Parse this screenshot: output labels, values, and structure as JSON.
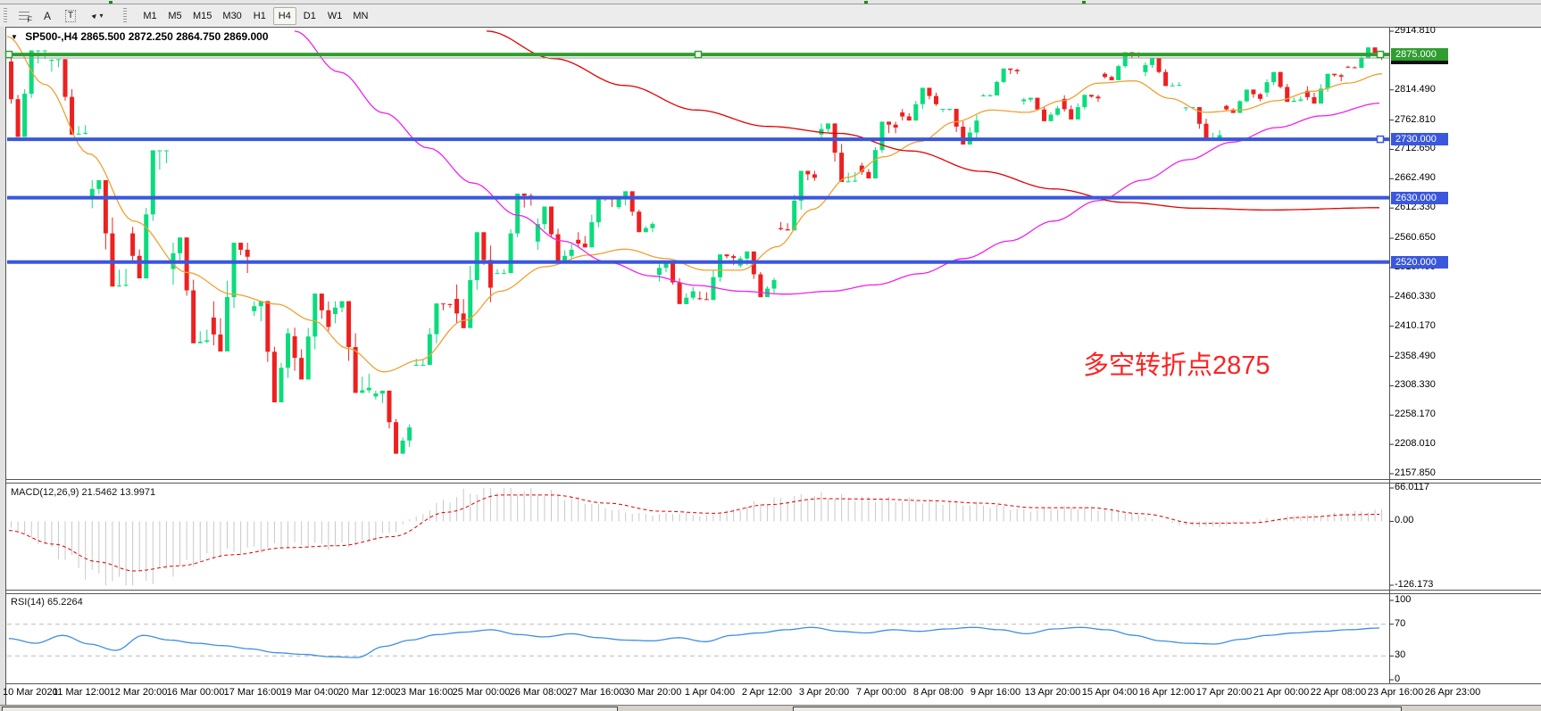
{
  "toolbar": {
    "icons": [
      {
        "name": "fibonacci-icon",
        "glyph": "F"
      },
      {
        "name": "text-icon",
        "glyph": "A"
      },
      {
        "name": "label-icon",
        "glyph": "T"
      },
      {
        "name": "arrows-icon",
        "glyph": "▸"
      },
      {
        "name": "dropdown-caret",
        "glyph": "▾"
      }
    ],
    "timeframes": [
      "M1",
      "M5",
      "M15",
      "M30",
      "H1",
      "H4",
      "D1",
      "W1",
      "MN"
    ],
    "active_timeframe": "H4"
  },
  "chart": {
    "collapse_icon": "▼",
    "title_symbol": "SP500-,H4",
    "title_ohlc": "2865.500 2872.250 2864.750 2869.000",
    "annotation": {
      "text": "多空转折点2875",
      "color": "#ff2222"
    }
  },
  "chart_data": {
    "type": "candlestick",
    "symbol": "SP500-",
    "timeframe": "H4",
    "current_bar": {
      "open": "2865.500",
      "high": "2872.250",
      "low": "2864.750",
      "close": "2869.000"
    },
    "candle_colors": {
      "bull": "#0adc7c",
      "bear": "#ee2020"
    },
    "price_axis": {
      "ticks": [
        [
          "2914.810",
          2914.81
        ],
        [
          "2814.490",
          2814.49
        ],
        [
          "2762.810",
          2762.81
        ],
        [
          "2712.650",
          2712.65
        ],
        [
          "2662.490",
          2662.49
        ],
        [
          "2612.330",
          2612.33
        ],
        [
          "2560.650",
          2560.65
        ],
        [
          "2510.490",
          2510.49
        ],
        [
          "2460.330",
          2460.33
        ],
        [
          "2410.170",
          2410.17
        ],
        [
          "2358.490",
          2358.49
        ],
        [
          "2308.330",
          2308.33
        ],
        [
          "2258.170",
          2258.17
        ],
        [
          "2208.010",
          2208.01
        ],
        [
          "2157.850",
          2157.85
        ]
      ],
      "badges": [
        {
          "label": "2869.000",
          "value": 2869,
          "bg": "#111111"
        },
        {
          "label": "2875.000",
          "value": 2875,
          "bg": "#2f9e2f"
        },
        {
          "label": "2730.000",
          "value": 2730,
          "bg": "#3a57dd"
        },
        {
          "label": "2630.000",
          "value": 2630,
          "bg": "#3a57dd"
        },
        {
          "label": "2520.000",
          "value": 2520,
          "bg": "#3a57dd"
        }
      ]
    },
    "hlines": [
      {
        "price": 2869,
        "color": "#9a9a9a",
        "width": 1,
        "handles": false
      },
      {
        "price": 2875,
        "color": "#2f9e2f",
        "width": 4,
        "handles": true
      },
      {
        "price": 2730,
        "color": "#3a57dd",
        "width": 4,
        "handles": "right"
      },
      {
        "price": 2630,
        "color": "#3a57dd",
        "width": 4,
        "handles": false
      },
      {
        "price": 2520,
        "color": "#3a57dd",
        "width": 4,
        "handles": false
      }
    ],
    "daily_ohlc": {
      "columns": [
        "date",
        "open",
        "high",
        "low",
        "close"
      ],
      "rows": [
        [
          "10 Mar",
          2863,
          2882,
          2734,
          2882
        ],
        [
          "11 Mar",
          2865,
          2867,
          2738,
          2741
        ],
        [
          "12 Mar",
          2630,
          2660,
          2478,
          2481
        ],
        [
          "13 Mar",
          2569,
          2711,
          2492,
          2711
        ],
        [
          "16 Mar",
          2508,
          2562,
          2381,
          2386
        ],
        [
          "17 Mar",
          2425,
          2553,
          2367,
          2529
        ],
        [
          "18 Mar",
          2436,
          2453,
          2280,
          2398
        ],
        [
          "19 Mar",
          2393,
          2466,
          2319,
          2409
        ],
        [
          "20 Mar",
          2431,
          2453,
          2296,
          2305
        ],
        [
          "23 Mar",
          2290,
          2300,
          2192,
          2237
        ],
        [
          "24 Mar",
          2344,
          2449,
          2344,
          2447
        ],
        [
          "25 Mar",
          2457,
          2571,
          2407,
          2476
        ],
        [
          "26 Mar",
          2501,
          2637,
          2501,
          2630
        ],
        [
          "27 Mar",
          2555,
          2615,
          2520,
          2541
        ],
        [
          "30 Mar",
          2558,
          2631,
          2545,
          2627
        ],
        [
          "31 Mar",
          2614,
          2641,
          2571,
          2585
        ],
        [
          "1 Apr",
          2498,
          2522,
          2448,
          2470
        ],
        [
          "2 Apr",
          2458,
          2533,
          2455,
          2527
        ],
        [
          "3 Apr",
          2514,
          2538,
          2460,
          2489
        ],
        [
          "6 Apr",
          2578,
          2676,
          2574,
          2664
        ],
        [
          "7 Apr",
          2738,
          2757,
          2657,
          2659
        ],
        [
          "8 Apr",
          2685,
          2760,
          2663,
          2750
        ],
        [
          "9 Apr",
          2776,
          2818,
          2762,
          2790
        ],
        [
          "13 Apr",
          2782,
          2782,
          2721,
          2762
        ],
        [
          "14 Apr",
          2805,
          2851,
          2805,
          2846
        ],
        [
          "15 Apr",
          2795,
          2801,
          2761,
          2783
        ],
        [
          "16 Apr",
          2799,
          2806,
          2764,
          2800
        ],
        [
          "17 Apr",
          2842,
          2879,
          2831,
          2875
        ],
        [
          "20 Apr",
          2845,
          2869,
          2821,
          2823
        ],
        [
          "21 Apr",
          2784,
          2785,
          2728,
          2737
        ],
        [
          "22 Apr",
          2787,
          2815,
          2775,
          2799
        ],
        [
          "23 Apr",
          2810,
          2845,
          2794,
          2798
        ],
        [
          "24 Apr",
          2813,
          2842,
          2791,
          2837
        ],
        [
          "27 Apr",
          2854,
          2887,
          2852,
          2869
        ]
      ]
    },
    "moving_averages": [
      {
        "name": "ma-fast",
        "color": "#f0a030",
        "points": [
          [
            8,
            2906
          ],
          [
            50,
            2824
          ],
          [
            100,
            2705
          ],
          [
            150,
            2590
          ],
          [
            210,
            2502
          ],
          [
            260,
            2465
          ],
          [
            310,
            2448
          ],
          [
            350,
            2420
          ],
          [
            390,
            2372
          ],
          [
            430,
            2332
          ],
          [
            470,
            2352
          ],
          [
            520,
            2420
          ],
          [
            560,
            2470
          ],
          [
            610,
            2512
          ],
          [
            660,
            2532
          ],
          [
            700,
            2542
          ],
          [
            745,
            2526
          ],
          [
            790,
            2506
          ],
          [
            830,
            2506
          ],
          [
            870,
            2546
          ],
          [
            910,
            2610
          ],
          [
            950,
            2665
          ],
          [
            990,
            2700
          ],
          [
            1030,
            2726
          ],
          [
            1070,
            2760
          ],
          [
            1110,
            2780
          ],
          [
            1150,
            2776
          ],
          [
            1190,
            2796
          ],
          [
            1230,
            2826
          ],
          [
            1270,
            2830
          ],
          [
            1310,
            2800
          ],
          [
            1350,
            2776
          ],
          [
            1390,
            2780
          ],
          [
            1430,
            2796
          ],
          [
            1470,
            2812
          ],
          [
            1510,
            2826
          ],
          [
            1548,
            2842
          ]
        ]
      },
      {
        "name": "ma-mid",
        "color": "#ee22ee",
        "points": [
          [
            330,
            2915
          ],
          [
            380,
            2845
          ],
          [
            430,
            2775
          ],
          [
            480,
            2715
          ],
          [
            530,
            2655
          ],
          [
            580,
            2600
          ],
          [
            630,
            2556
          ],
          [
            680,
            2520
          ],
          [
            730,
            2496
          ],
          [
            780,
            2480
          ],
          [
            830,
            2470
          ],
          [
            880,
            2465
          ],
          [
            930,
            2470
          ],
          [
            980,
            2481
          ],
          [
            1030,
            2500
          ],
          [
            1080,
            2526
          ],
          [
            1130,
            2556
          ],
          [
            1180,
            2590
          ],
          [
            1230,
            2625
          ],
          [
            1280,
            2660
          ],
          [
            1330,
            2695
          ],
          [
            1380,
            2725
          ],
          [
            1430,
            2750
          ],
          [
            1480,
            2770
          ],
          [
            1548,
            2792
          ]
        ]
      },
      {
        "name": "ma-slow",
        "color": "#e00000",
        "points": [
          [
            545,
            2915
          ],
          [
            620,
            2868
          ],
          [
            700,
            2822
          ],
          [
            780,
            2780
          ],
          [
            860,
            2752
          ],
          [
            940,
            2740
          ],
          [
            1020,
            2710
          ],
          [
            1100,
            2675
          ],
          [
            1180,
            2645
          ],
          [
            1260,
            2622
          ],
          [
            1340,
            2612
          ],
          [
            1420,
            2609
          ],
          [
            1548,
            2613
          ]
        ]
      }
    ],
    "macd": {
      "label": "MACD(12,26,9)",
      "values": "21.5462 13.9971",
      "axis_ticks": [
        [
          "66.0117",
          66.0117
        ],
        [
          "0.00",
          0
        ],
        [
          "-126.173",
          -126.173
        ]
      ],
      "histogram_color": "#c8c8c8",
      "signal_color": "#dd0000",
      "histogram": [
        [
          10,
          -12
        ],
        [
          40,
          -38
        ],
        [
          70,
          -70
        ],
        [
          105,
          -108
        ],
        [
          135,
          -126
        ],
        [
          165,
          -112
        ],
        [
          195,
          -95
        ],
        [
          225,
          -76
        ],
        [
          255,
          -62
        ],
        [
          285,
          -55
        ],
        [
          315,
          -50
        ],
        [
          345,
          -46
        ],
        [
          375,
          -50
        ],
        [
          405,
          -44
        ],
        [
          435,
          -24
        ],
        [
          465,
          8
        ],
        [
          495,
          38
        ],
        [
          525,
          58
        ],
        [
          555,
          66
        ],
        [
          585,
          61
        ],
        [
          615,
          55
        ],
        [
          645,
          45
        ],
        [
          672,
          30
        ],
        [
          700,
          18
        ],
        [
          730,
          13
        ],
        [
          760,
          16
        ],
        [
          790,
          11
        ],
        [
          820,
          22
        ],
        [
          850,
          36
        ],
        [
          880,
          46
        ],
        [
          910,
          51
        ],
        [
          940,
          48
        ],
        [
          970,
          45
        ],
        [
          1000,
          43
        ],
        [
          1030,
          41
        ],
        [
          1060,
          38
        ],
        [
          1090,
          34
        ],
        [
          1120,
          29
        ],
        [
          1150,
          22
        ],
        [
          1180,
          26
        ],
        [
          1210,
          28
        ],
        [
          1240,
          24
        ],
        [
          1270,
          14
        ],
        [
          1300,
          1
        ],
        [
          1330,
          -9
        ],
        [
          1360,
          -11
        ],
        [
          1390,
          -4
        ],
        [
          1420,
          6
        ],
        [
          1450,
          11
        ],
        [
          1480,
          13
        ],
        [
          1510,
          18
        ],
        [
          1545,
          21.5
        ]
      ],
      "signal": [
        [
          10,
          -18
        ],
        [
          60,
          -45
        ],
        [
          110,
          -80
        ],
        [
          150,
          -98
        ],
        [
          200,
          -88
        ],
        [
          260,
          -66
        ],
        [
          320,
          -52
        ],
        [
          380,
          -48
        ],
        [
          440,
          -30
        ],
        [
          500,
          18
        ],
        [
          560,
          52
        ],
        [
          620,
          52
        ],
        [
          680,
          36
        ],
        [
          740,
          20
        ],
        [
          800,
          16
        ],
        [
          860,
          33
        ],
        [
          920,
          45
        ],
        [
          980,
          44
        ],
        [
          1040,
          41
        ],
        [
          1100,
          36
        ],
        [
          1160,
          27
        ],
        [
          1220,
          27
        ],
        [
          1280,
          15
        ],
        [
          1340,
          -4
        ],
        [
          1400,
          -3
        ],
        [
          1460,
          8
        ],
        [
          1510,
          13
        ],
        [
          1545,
          14
        ]
      ]
    },
    "rsi": {
      "label": "RSI(14)",
      "value": "65.2264",
      "color": "#3e8ee6",
      "axis_ticks": [
        [
          "100",
          100
        ],
        [
          "70",
          70
        ],
        [
          "30",
          30
        ],
        [
          "0",
          0
        ]
      ],
      "levels": [
        70,
        30
      ],
      "line": [
        [
          10,
          52
        ],
        [
          40,
          46
        ],
        [
          70,
          56
        ],
        [
          100,
          45
        ],
        [
          130,
          37
        ],
        [
          160,
          56
        ],
        [
          190,
          50
        ],
        [
          220,
          46
        ],
        [
          250,
          43
        ],
        [
          280,
          39
        ],
        [
          310,
          34
        ],
        [
          340,
          32
        ],
        [
          370,
          29
        ],
        [
          400,
          28
        ],
        [
          430,
          42
        ],
        [
          460,
          50
        ],
        [
          490,
          57
        ],
        [
          520,
          60
        ],
        [
          550,
          63
        ],
        [
          580,
          57
        ],
        [
          610,
          54
        ],
        [
          640,
          58
        ],
        [
          670,
          53
        ],
        [
          700,
          50
        ],
        [
          730,
          49
        ],
        [
          760,
          53
        ],
        [
          790,
          48
        ],
        [
          820,
          56
        ],
        [
          850,
          59
        ],
        [
          880,
          63
        ],
        [
          910,
          66
        ],
        [
          940,
          61
        ],
        [
          970,
          59
        ],
        [
          1000,
          63
        ],
        [
          1030,
          61
        ],
        [
          1060,
          64
        ],
        [
          1090,
          66
        ],
        [
          1120,
          63
        ],
        [
          1150,
          58
        ],
        [
          1180,
          64
        ],
        [
          1210,
          66
        ],
        [
          1240,
          63
        ],
        [
          1270,
          56
        ],
        [
          1300,
          49
        ],
        [
          1330,
          46
        ],
        [
          1360,
          45
        ],
        [
          1390,
          51
        ],
        [
          1420,
          56
        ],
        [
          1450,
          59
        ],
        [
          1480,
          61
        ],
        [
          1510,
          63
        ],
        [
          1545,
          65.2
        ]
      ]
    },
    "time_axis": {
      "labels": [
        "10 Mar 2020",
        "11 Mar 12:00",
        "12 Mar 20:00",
        "16 Mar 00:00",
        "17 Mar 16:00",
        "19 Mar 04:00",
        "20 Mar 12:00",
        "23 Mar 16:00",
        "25 Mar 00:00",
        "26 Mar 08:00",
        "27 Mar 16:00",
        "30 Mar 20:00",
        "1 Apr 04:00",
        "2 Apr 12:00",
        "3 Apr 20:00",
        "7 Apr 00:00",
        "8 Apr 08:00",
        "9 Apr 16:00",
        "13 Apr 20:00",
        "15 Apr 04:00",
        "16 Apr 12:00",
        "17 Apr 20:00",
        "21 Apr 00:00",
        "22 Apr 08:00",
        "23 Apr 16:00",
        "26 Apr 23:00"
      ]
    }
  }
}
